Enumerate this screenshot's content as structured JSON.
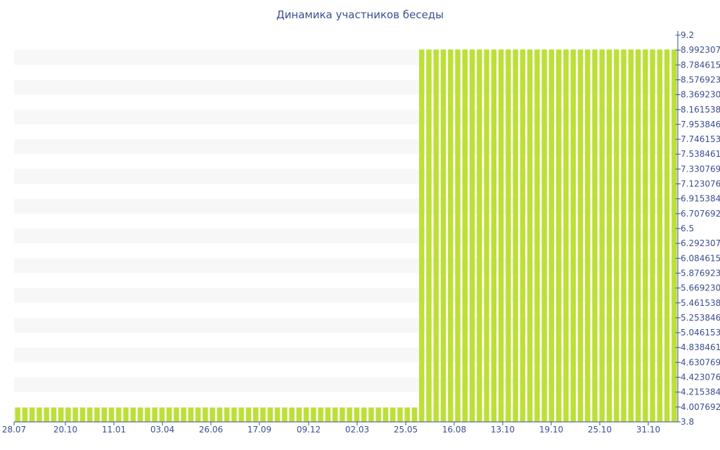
{
  "chart_data": {
    "type": "bar",
    "title": "Динамика участников беседы",
    "xlabel": "",
    "ylabel": "",
    "ylim": [
      3.8,
      9.2
    ],
    "grid": "horizontal-bands",
    "legend": "none",
    "colors": {
      "bar": "#bedf35",
      "band": "#f7f7f7",
      "axis": "#3a4f8f",
      "title": "#3a4f8f"
    },
    "x_tick_labels": [
      "28.07",
      "20.10",
      "11.01",
      "03.04",
      "26.06",
      "17.09",
      "09.12",
      "02.03",
      "25.05",
      "16.08",
      "13.10",
      "19.10",
      "25.10",
      "31.10"
    ],
    "y_tick_labels": [
      "3.8",
      "4.007692",
      "4.215384",
      "4.423076",
      "4.630769",
      "4.838461",
      "5.046153",
      "5.253846",
      "5.461538",
      "5.669230",
      "5.876923",
      "6.084615",
      "6.292307",
      "6.5",
      "6.707692",
      "6.915384",
      "7.123076",
      "7.330769",
      "7.538461",
      "7.746153",
      "7.953846",
      "8.161538",
      "8.369230",
      "8.576923",
      "8.784615",
      "8.992307",
      "9.2"
    ],
    "values": [
      4,
      4,
      4,
      4,
      4,
      4,
      4,
      4,
      4,
      4,
      4,
      4,
      4,
      4,
      4,
      4,
      4,
      4,
      4,
      4,
      4,
      4,
      4,
      4,
      4,
      4,
      4,
      4,
      4,
      4,
      4,
      4,
      4,
      4,
      4,
      4,
      4,
      4,
      4,
      4,
      4,
      4,
      4,
      4,
      4,
      4,
      4,
      4,
      4,
      4,
      4,
      4,
      4,
      4,
      4,
      4,
      9,
      9,
      9,
      9,
      9,
      9,
      9,
      9,
      9,
      9,
      9,
      9,
      9,
      9,
      9,
      9,
      9,
      9,
      9,
      9,
      9,
      9,
      9,
      9,
      9,
      9,
      9,
      9,
      9,
      9,
      9,
      9,
      9,
      9,
      9,
      9
    ]
  }
}
